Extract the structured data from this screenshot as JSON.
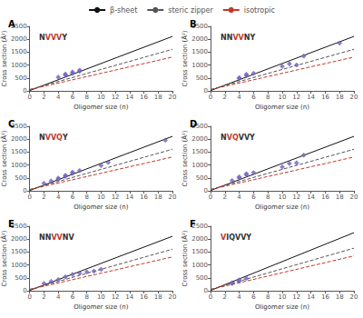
{
  "chart_data": [
    {
      "type": "scatter",
      "label": "A",
      "title": "NVVVY",
      "title_parts": [
        {
          "text": "N",
          "color": "#333333"
        },
        {
          "text": "VVV",
          "color": "#c0392b"
        },
        {
          "text": "Y",
          "color": "#333333"
        }
      ],
      "xlabel": "Oligomer size (n)",
      "ylabel": "Cross section (Å²)",
      "xlim": [
        0,
        20
      ],
      "ylim": [
        0,
        2500
      ],
      "xticks": [
        0,
        2,
        4,
        6,
        8,
        10,
        12,
        14,
        16,
        18,
        20
      ],
      "yticks": [
        0,
        500,
        1000,
        1500,
        2000,
        2500
      ],
      "grid": false,
      "legend": "top",
      "series": [
        {
          "name": "β-sheet",
          "type": "line",
          "color": "#111111",
          "line_style": "solid",
          "x": [
            0,
            20
          ],
          "values": [
            10,
            2110
          ]
        },
        {
          "name": "steric zipper",
          "type": "line",
          "color": "#555555",
          "line_style": "dashed",
          "x": [
            0,
            20
          ],
          "values": [
            50,
            1610
          ]
        },
        {
          "name": "isotropic",
          "type": "line",
          "color": "#c0392b",
          "line_style": "dashed",
          "x": [
            0,
            20
          ],
          "values": [
            50,
            1310
          ]
        },
        {
          "type": "scatter",
          "color": "#7b68c8",
          "marker": "diamond",
          "x": [
            4,
            5,
            5,
            6,
            6,
            7,
            7
          ],
          "values": [
            530,
            610,
            650,
            680,
            730,
            760,
            800
          ]
        }
      ]
    },
    {
      "type": "scatter",
      "label": "B",
      "title": "NNVVNY",
      "title_parts": [
        {
          "text": "NN",
          "color": "#333333"
        },
        {
          "text": "VV",
          "color": "#c0392b"
        },
        {
          "text": "NY",
          "color": "#333333"
        }
      ],
      "xlabel": "Oligomer size (n)",
      "ylabel": "Cross section (Å²)",
      "xlim": [
        0,
        20
      ],
      "ylim": [
        0,
        2500
      ],
      "xticks": [
        0,
        2,
        4,
        6,
        8,
        10,
        12,
        14,
        16,
        18,
        20
      ],
      "yticks": [
        0,
        500,
        1000,
        1500,
        2000,
        2500
      ],
      "grid": false,
      "series": [
        {
          "type": "line",
          "color": "#111111",
          "line_style": "solid",
          "x": [
            0,
            20
          ],
          "values": [
            10,
            2110
          ]
        },
        {
          "type": "line",
          "color": "#555555",
          "line_style": "dashed",
          "x": [
            0,
            20
          ],
          "values": [
            50,
            1610
          ]
        },
        {
          "type": "line",
          "color": "#c0392b",
          "line_style": "dashed",
          "x": [
            0,
            20
          ],
          "values": [
            50,
            1310
          ]
        },
        {
          "type": "scatter",
          "color": "#7b68c8",
          "marker": "diamond",
          "x": [
            4,
            4,
            5,
            5,
            6,
            10,
            11,
            12,
            13,
            18
          ],
          "values": [
            480,
            510,
            590,
            640,
            680,
            950,
            1050,
            1000,
            1350,
            1850
          ]
        }
      ]
    },
    {
      "type": "scatter",
      "label": "C",
      "title": "NVVQY",
      "title_parts": [
        {
          "text": "N",
          "color": "#333333"
        },
        {
          "text": "VVQ",
          "color": "#c0392b"
        },
        {
          "text": "Y",
          "color": "#333333"
        }
      ],
      "xlabel": "Oligomer size (n)",
      "ylabel": "Cross section (Å²)",
      "xlim": [
        0,
        20
      ],
      "ylim": [
        0,
        2500
      ],
      "xticks": [
        0,
        2,
        4,
        6,
        8,
        10,
        12,
        14,
        16,
        18,
        20
      ],
      "yticks": [
        0,
        500,
        1000,
        1500,
        2000,
        2500
      ],
      "grid": false,
      "series": [
        {
          "type": "line",
          "color": "#111111",
          "line_style": "solid",
          "x": [
            0,
            20
          ],
          "values": [
            10,
            2110
          ]
        },
        {
          "type": "line",
          "color": "#555555",
          "line_style": "dashed",
          "x": [
            0,
            20
          ],
          "values": [
            50,
            1610
          ]
        },
        {
          "type": "line",
          "color": "#c0392b",
          "line_style": "dashed",
          "x": [
            0,
            20
          ],
          "values": [
            50,
            1310
          ]
        },
        {
          "type": "scatter",
          "color": "#7b68c8",
          "marker": "diamond",
          "x": [
            2,
            3,
            4,
            4,
            5,
            5,
            6,
            6,
            7,
            10,
            11,
            19
          ],
          "values": [
            290,
            380,
            450,
            490,
            560,
            600,
            680,
            720,
            780,
            980,
            1100,
            1960
          ]
        }
      ]
    },
    {
      "type": "scatter",
      "label": "D",
      "title": "NVQVVY",
      "title_parts": [
        {
          "text": "N",
          "color": "#333333"
        },
        {
          "text": "VQ",
          "color": "#c0392b"
        },
        {
          "text": "VVY",
          "color": "#333333"
        }
      ],
      "xlabel": "Oligomer size (n)",
      "ylabel": "Cross section (Å²)",
      "xlim": [
        0,
        20
      ],
      "ylim": [
        0,
        2500
      ],
      "xticks": [
        0,
        2,
        4,
        6,
        8,
        10,
        12,
        14,
        16,
        18,
        20
      ],
      "yticks": [
        0,
        500,
        1000,
        1500,
        2000,
        2500
      ],
      "grid": false,
      "series": [
        {
          "type": "line",
          "color": "#111111",
          "line_style": "solid",
          "x": [
            0,
            20
          ],
          "values": [
            10,
            2110
          ]
        },
        {
          "type": "line",
          "color": "#555555",
          "line_style": "dashed",
          "x": [
            0,
            20
          ],
          "values": [
            50,
            1610
          ]
        },
        {
          "type": "line",
          "color": "#c0392b",
          "line_style": "dashed",
          "x": [
            0,
            20
          ],
          "values": [
            50,
            1310
          ]
        },
        {
          "type": "scatter",
          "color": "#7b68c8",
          "marker": "diamond",
          "x": [
            3,
            4,
            4,
            5,
            5,
            6,
            10,
            11,
            12,
            13
          ],
          "values": [
            400,
            500,
            540,
            620,
            660,
            700,
            920,
            1060,
            1080,
            1380
          ]
        }
      ]
    },
    {
      "type": "scatter",
      "label": "E",
      "title": "NNVVNV",
      "title_parts": [
        {
          "text": "NN",
          "color": "#333333"
        },
        {
          "text": "VV",
          "color": "#c0392b"
        },
        {
          "text": "NV",
          "color": "#333333"
        }
      ],
      "xlabel": "Oligomer size (n)",
      "ylabel": "Cross section (Å²)",
      "xlim": [
        0,
        20
      ],
      "ylim": [
        0,
        2500
      ],
      "xticks": [
        0,
        2,
        4,
        6,
        8,
        10,
        12,
        14,
        16,
        18,
        20
      ],
      "yticks": [
        0,
        500,
        1000,
        1500,
        2000,
        2500
      ],
      "grid": false,
      "series": [
        {
          "type": "line",
          "color": "#111111",
          "line_style": "solid",
          "x": [
            0,
            20
          ],
          "values": [
            10,
            2110
          ]
        },
        {
          "type": "line",
          "color": "#555555",
          "line_style": "dashed",
          "x": [
            0,
            20
          ],
          "values": [
            50,
            1610
          ]
        },
        {
          "type": "line",
          "color": "#c0392b",
          "line_style": "dashed",
          "x": [
            0,
            20
          ],
          "values": [
            50,
            1310
          ]
        },
        {
          "type": "scatter",
          "color": "#7b68c8",
          "marker": "diamond",
          "x": [
            2,
            3,
            4,
            5,
            6,
            7,
            8,
            9,
            10
          ],
          "values": [
            280,
            360,
            430,
            540,
            630,
            680,
            730,
            760,
            830
          ]
        }
      ]
    },
    {
      "type": "scatter",
      "label": "F",
      "title": "VIQVVY",
      "title_parts": [
        {
          "text": "V",
          "color": "#c0392b"
        },
        {
          "text": "IQ",
          "color": "#333333"
        },
        {
          "text": "VVY",
          "color": "#333333"
        }
      ],
      "xlabel": "Oligomer size (n)",
      "ylabel": "Cross section (Å²)",
      "xlim": [
        0,
        20
      ],
      "ylim": [
        0,
        2500
      ],
      "xticks": [
        0,
        2,
        4,
        6,
        8,
        10,
        12,
        14,
        16,
        18,
        20
      ],
      "yticks": [
        0,
        500,
        1000,
        1500,
        2000,
        2500
      ],
      "grid": false,
      "series": [
        {
          "type": "line",
          "color": "#111111",
          "line_style": "solid",
          "x": [
            0,
            20
          ],
          "values": [
            10,
            2250
          ]
        },
        {
          "type": "line",
          "color": "#555555",
          "line_style": "dashed",
          "x": [
            0,
            20
          ],
          "values": [
            50,
            1650
          ]
        },
        {
          "type": "line",
          "color": "#c0392b",
          "line_style": "dashed",
          "x": [
            0,
            20
          ],
          "values": [
            50,
            1350
          ]
        },
        {
          "type": "scatter",
          "color": "#7b68c8",
          "marker": "diamond",
          "x": [
            3,
            3,
            4,
            4,
            5
          ],
          "values": [
            280,
            310,
            370,
            420,
            480
          ]
        }
      ]
    }
  ]
}
